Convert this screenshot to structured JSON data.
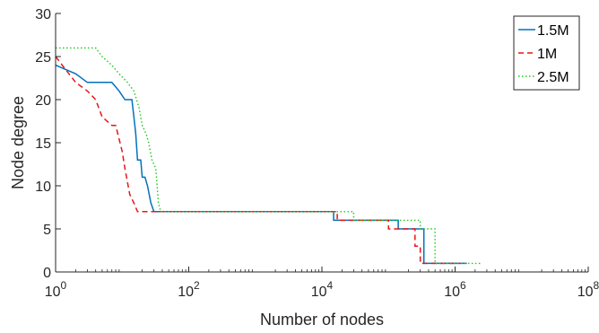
{
  "chart_data": {
    "type": "line",
    "title": "",
    "xlabel": "Number of nodes",
    "ylabel": "Node degree",
    "xscale": "log",
    "xlim": [
      1,
      100000000
    ],
    "ylim": [
      0,
      30
    ],
    "x_ticks": [
      {
        "base": "10",
        "exp": "0",
        "value": 1
      },
      {
        "base": "10",
        "exp": "2",
        "value": 100
      },
      {
        "base": "10",
        "exp": "4",
        "value": 10000
      },
      {
        "base": "10",
        "exp": "6",
        "value": 1000000
      },
      {
        "base": "10",
        "exp": "8",
        "value": 100000000
      }
    ],
    "y_ticks": [
      "0",
      "5",
      "10",
      "15",
      "20",
      "25",
      "30"
    ],
    "grid": false,
    "legend_position": "top-right",
    "series": [
      {
        "name": "1.5M",
        "color": "#0072BD",
        "style": "solid",
        "points": [
          [
            1,
            24
          ],
          [
            2,
            23
          ],
          [
            3,
            22
          ],
          [
            7,
            22
          ],
          [
            9,
            21
          ],
          [
            11,
            20
          ],
          [
            14,
            20
          ],
          [
            15,
            18
          ],
          [
            16,
            16
          ],
          [
            17,
            13
          ],
          [
            19,
            13
          ],
          [
            20,
            11
          ],
          [
            22,
            11
          ],
          [
            24,
            10
          ],
          [
            27,
            8
          ],
          [
            30,
            7
          ],
          [
            15000,
            7
          ],
          [
            15000,
            6
          ],
          [
            140000,
            6
          ],
          [
            140000,
            5
          ],
          [
            340000,
            5
          ],
          [
            340000,
            1
          ],
          [
            1500000,
            1
          ]
        ]
      },
      {
        "name": "1M",
        "color": "#E8141A",
        "style": "dashed",
        "points": [
          [
            1,
            25
          ],
          [
            2,
            22
          ],
          [
            3,
            21
          ],
          [
            4,
            20
          ],
          [
            5,
            18
          ],
          [
            7,
            17
          ],
          [
            8,
            17
          ],
          [
            10,
            14
          ],
          [
            11,
            12
          ],
          [
            13,
            9
          ],
          [
            15,
            8
          ],
          [
            17,
            7
          ],
          [
            17000,
            7
          ],
          [
            17000,
            6
          ],
          [
            100000,
            6
          ],
          [
            100000,
            5
          ],
          [
            250000,
            5
          ],
          [
            250000,
            3
          ],
          [
            300000,
            3
          ],
          [
            300000,
            1
          ],
          [
            1200000,
            1
          ]
        ]
      },
      {
        "name": "2.5M",
        "color": "#1DC81D",
        "style": "dotted",
        "points": [
          [
            1,
            26
          ],
          [
            4,
            26
          ],
          [
            5,
            25
          ],
          [
            7,
            24
          ],
          [
            9,
            23
          ],
          [
            12,
            22
          ],
          [
            15,
            21
          ],
          [
            18,
            19
          ],
          [
            20,
            17
          ],
          [
            23,
            16
          ],
          [
            25,
            15
          ],
          [
            28,
            13
          ],
          [
            32,
            12
          ],
          [
            35,
            8
          ],
          [
            38,
            7
          ],
          [
            30000,
            7
          ],
          [
            30000,
            6
          ],
          [
            300000,
            6
          ],
          [
            300000,
            5
          ],
          [
            500000,
            5
          ],
          [
            500000,
            1
          ],
          [
            2400000,
            1
          ]
        ]
      }
    ]
  }
}
